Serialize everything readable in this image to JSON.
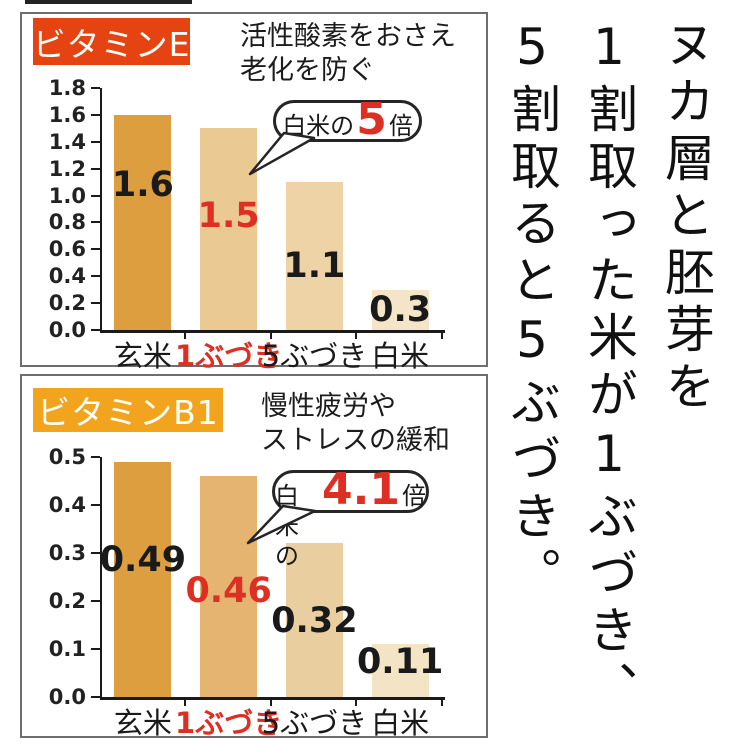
{
  "colors": {
    "accent_red": "#dd2f23",
    "badge_vitamin_e_bg": "#e64312",
    "badge_vitamin_b1_bg": "#f3a41e",
    "brown_rice_bar": "#dc9e3f"
  },
  "chart_data": [
    {
      "type": "bar",
      "title": "ビタミンE",
      "subtitle_lines": [
        "活性酸素をおさえ",
        "老化を防ぐ"
      ],
      "categories": [
        "玄米",
        "1ぶづき",
        "5ぶづき",
        "白米"
      ],
      "values": [
        1.6,
        1.5,
        1.1,
        0.3
      ],
      "ylim": [
        0,
        1.8
      ],
      "yticks": [
        1.8,
        1.6,
        1.4,
        1.2,
        1.0,
        0.8,
        0.6,
        0.4,
        0.2,
        0.0
      ],
      "bar_colors": [
        "#dc9e3f",
        "#ebc992",
        "#eed3a6",
        "#f4e5c8"
      ],
      "value_label_colors": [
        "#1a1a1a",
        "#dd2f23",
        "#1a1a1a",
        "#1a1a1a"
      ],
      "category_label_colors": [
        "#1a1a1a",
        "#dd2f23",
        "#1a1a1a",
        "#1a1a1a"
      ],
      "highlight_index": 1,
      "legend": "none",
      "grid": false,
      "callout": {
        "prefix": "白米の",
        "value": "5",
        "suffix": "倍",
        "points_to": "1ぶづき"
      }
    },
    {
      "type": "bar",
      "title": "ビタミンB1",
      "subtitle_lines": [
        "慢性疲労や",
        "ストレスの緩和"
      ],
      "categories": [
        "玄米",
        "1ぶづき",
        "5ぶづき",
        "白米"
      ],
      "values": [
        0.49,
        0.46,
        0.32,
        0.11
      ],
      "ylim": [
        0,
        0.5
      ],
      "yticks": [
        0.5,
        0.4,
        0.3,
        0.2,
        0.1,
        0.0
      ],
      "bar_colors": [
        "#dc9e3f",
        "#e4b470",
        "#e9cf9f",
        "#f3e4c6"
      ],
      "value_label_colors": [
        "#1a1a1a",
        "#dd2f23",
        "#1a1a1a",
        "#1a1a1a"
      ],
      "category_label_colors": [
        "#1a1a1a",
        "#dd2f23",
        "#1a1a1a",
        "#1a1a1a"
      ],
      "highlight_index": 1,
      "legend": "none",
      "grid": false,
      "callout": {
        "prefix": "白米の",
        "value": "4.1",
        "suffix": "倍",
        "points_to": "1ぶづき"
      }
    }
  ],
  "side_text": {
    "lines": [
      "ヌカ層と胚芽を",
      "1割取った米が1ぶづき、",
      "5割取ると5ぶづき。"
    ]
  }
}
